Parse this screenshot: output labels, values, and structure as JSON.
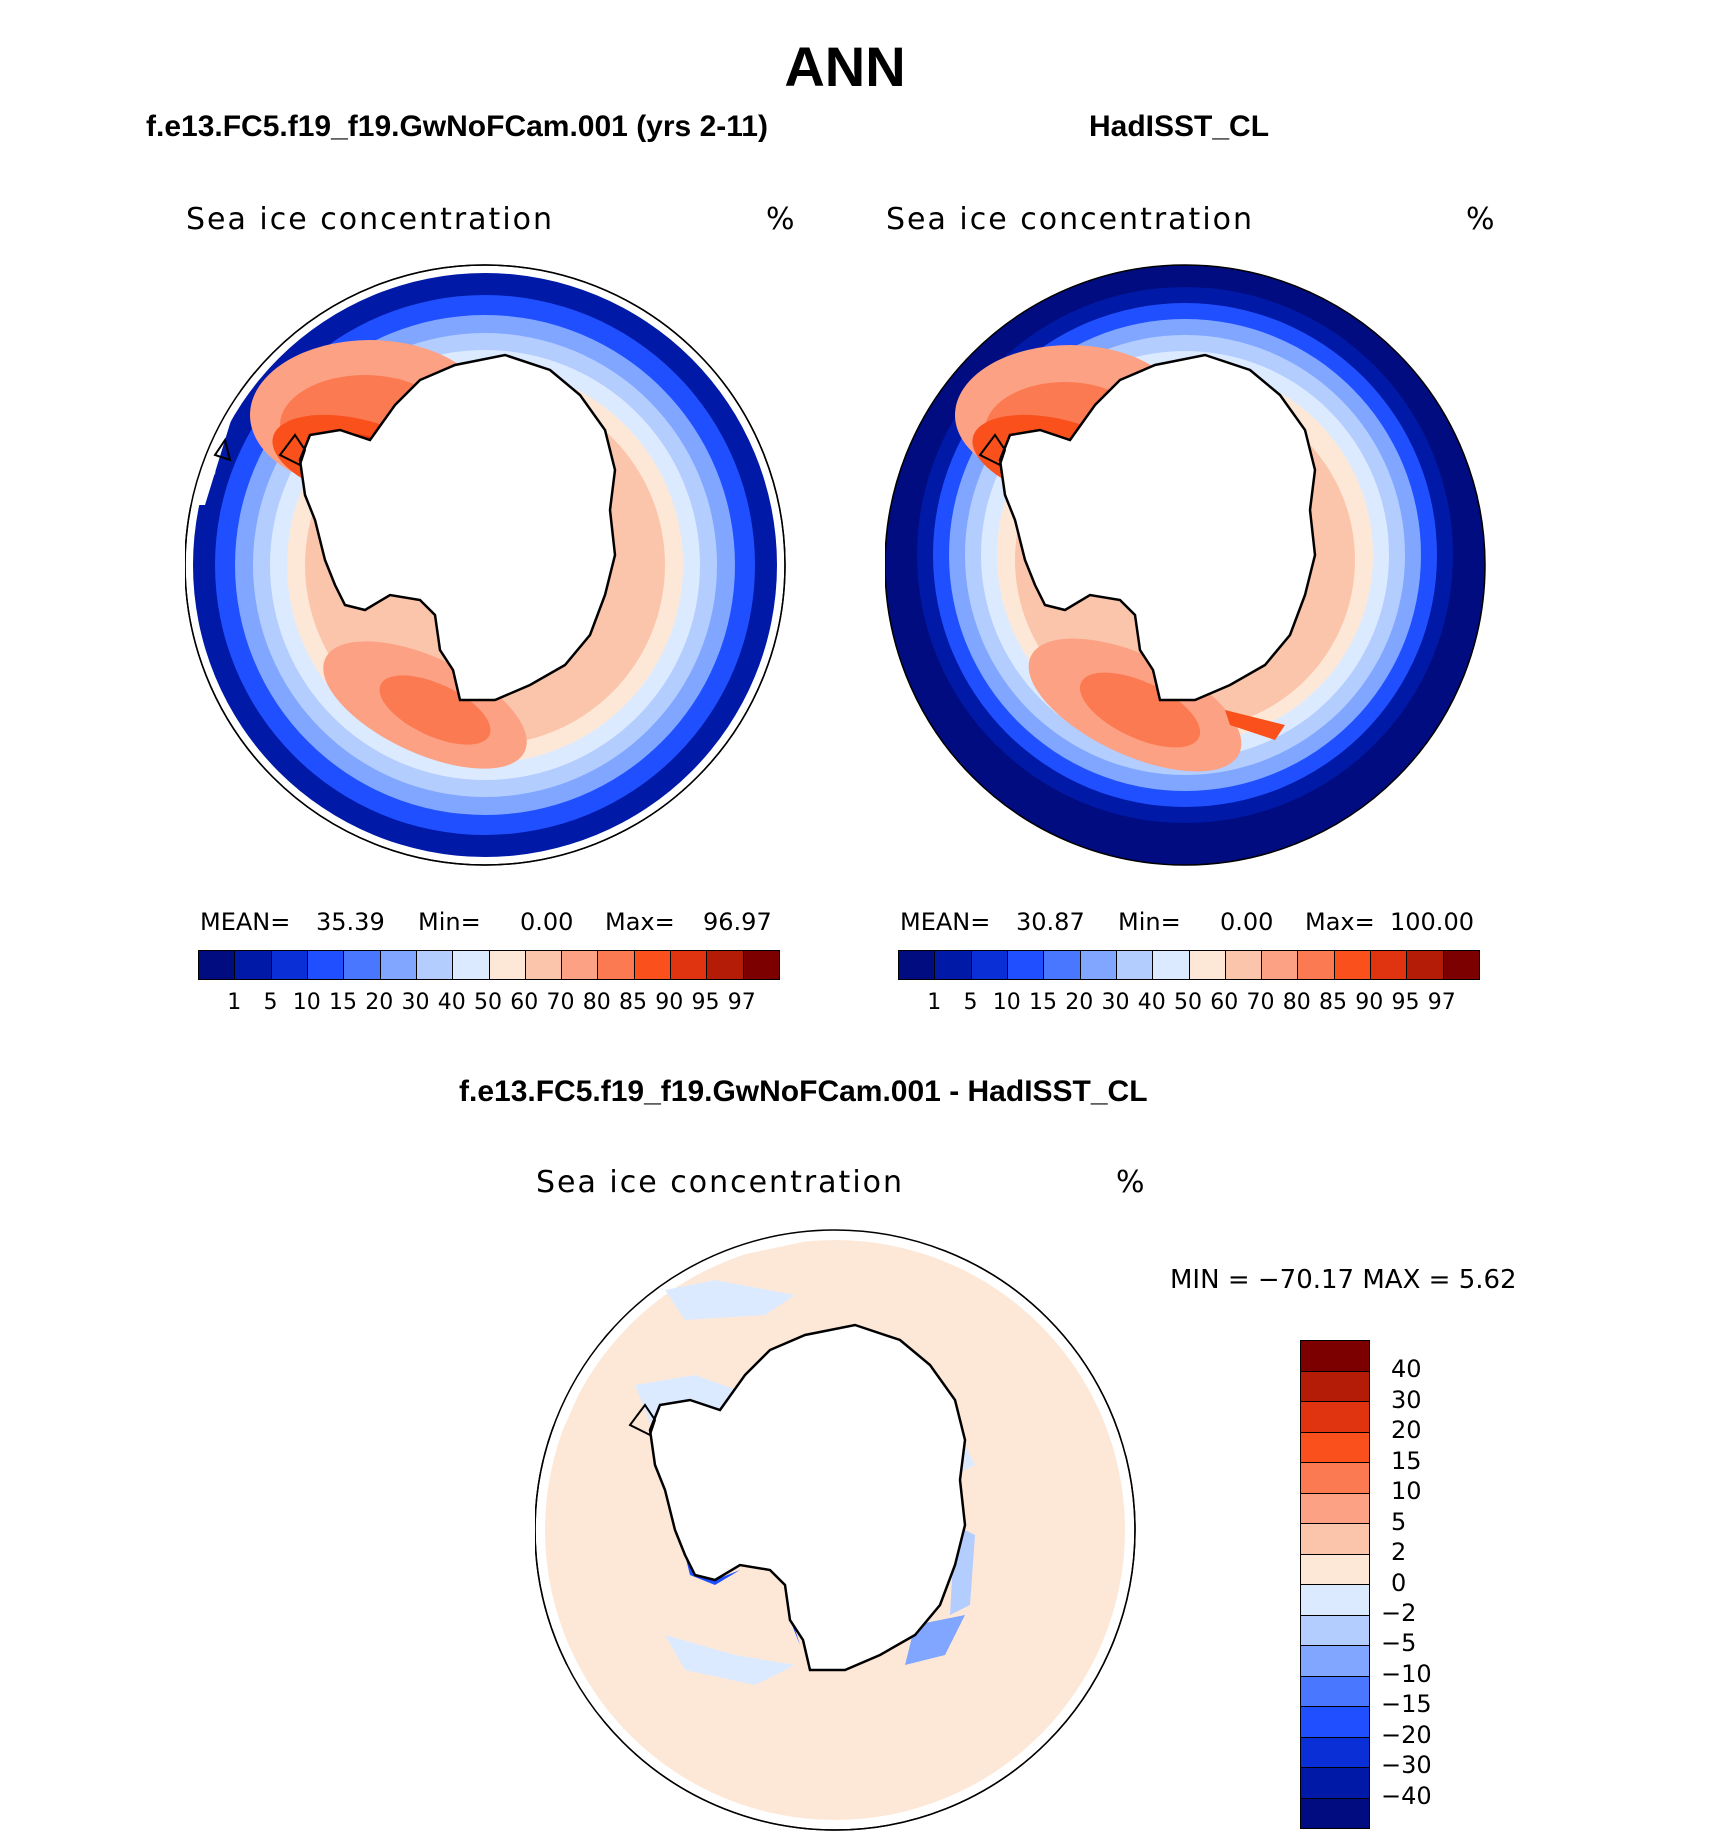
{
  "title": "ANN",
  "panels": [
    {
      "case_title": "f.e13.FC5.f19_f19.GwNoFCam.001 (yrs 2-11)",
      "field_name": "Sea ice concentration",
      "units": "%",
      "stats": {
        "mean_label": "MEAN=",
        "mean": "35.39",
        "min_label": "Min=",
        "min": "0.00",
        "max_label": "Max=",
        "max": "96.97"
      }
    },
    {
      "case_title": "HadISST_CL",
      "field_name": "Sea ice concentration",
      "units": "%",
      "stats": {
        "mean_label": "MEAN=",
        "mean": "30.87",
        "min_label": "Min=",
        "min": "0.00",
        "max_label": "Max=",
        "max": "100.00"
      }
    }
  ],
  "diff_panel": {
    "case_title": "f.e13.FC5.f19_f19.GwNoFCam.001 - HadISST_CL",
    "field_name": "Sea ice concentration",
    "units": "%",
    "minmax": "MIN = −70.17 MAX =     5.62"
  },
  "colorbar_levels": [
    "1",
    "5",
    "10",
    "15",
    "20",
    "30",
    "40",
    "50",
    "60",
    "70",
    "80",
    "85",
    "90",
    "95",
    "97"
  ],
  "colorbar_colors": [
    "#000c7f",
    "#0019a6",
    "#0a2fd6",
    "#1f4fff",
    "#4a77ff",
    "#80a6ff",
    "#b4cdff",
    "#dceaff",
    "#fde8d8",
    "#fbc5ab",
    "#fca183",
    "#fb7a52",
    "#f9501c",
    "#e03410",
    "#b41c08",
    "#7d0000"
  ],
  "diff_levels": [
    "40",
    "30",
    "20",
    "15",
    "10",
    "5",
    "2",
    "0",
    "−2",
    "−5",
    "−10",
    "−15",
    "−20",
    "−30",
    "−40"
  ],
  "diff_colors": [
    "#7d0000",
    "#b41c08",
    "#e03410",
    "#f9501c",
    "#fb7a52",
    "#fca183",
    "#fbc5ab",
    "#fde8d8",
    "#dceaff",
    "#b4cdff",
    "#80a6ff",
    "#4a77ff",
    "#1f4fff",
    "#0a2fd6",
    "#0019a6",
    "#000c7f"
  ]
}
